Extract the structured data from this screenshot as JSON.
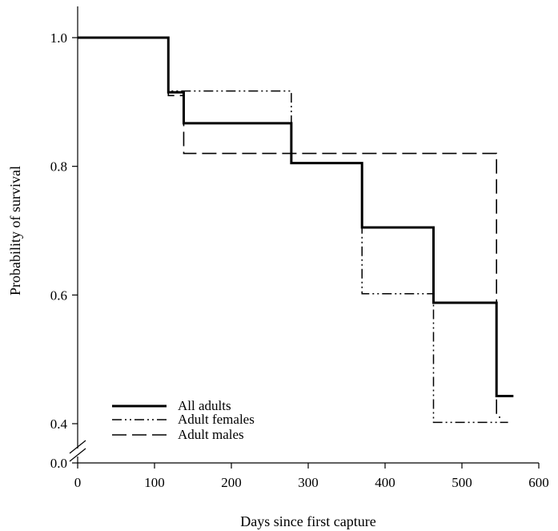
{
  "chart_data": {
    "type": "line",
    "title": "",
    "xlabel": "Days since first capture",
    "ylabel": "Probability of survival",
    "xlim": [
      0,
      600
    ],
    "ylim": [
      0.4,
      1.05
    ],
    "axis_break": {
      "from": 0.0,
      "to": 0.4
    },
    "x_ticks": [
      "0",
      "100",
      "200",
      "300",
      "400",
      "500",
      "600"
    ],
    "y_ticks": [
      "0.0",
      "0.4",
      "0.6",
      "0.8",
      "1.0"
    ],
    "grid": false,
    "legend": "bottom-left",
    "series": [
      {
        "name": "All adults",
        "style": "solid-thick",
        "step": true,
        "x": [
          0,
          118,
          138,
          278,
          370,
          463,
          545,
          567
        ],
        "y": [
          1.0,
          0.915,
          0.867,
          0.805,
          0.705,
          0.588,
          0.443,
          0.443
        ]
      },
      {
        "name": "Adult females",
        "style": "dash-dot-dot",
        "step": true,
        "x": [
          0,
          118,
          278,
          370,
          463,
          545,
          560
        ],
        "y": [
          1.0,
          0.917,
          0.805,
          0.602,
          0.402,
          0.402,
          0.402
        ]
      },
      {
        "name": "Adult males",
        "style": "dashed",
        "step": true,
        "x": [
          0,
          118,
          138,
          545,
          550
        ],
        "y": [
          1.0,
          0.91,
          0.82,
          0.41,
          0.41
        ]
      }
    ]
  }
}
